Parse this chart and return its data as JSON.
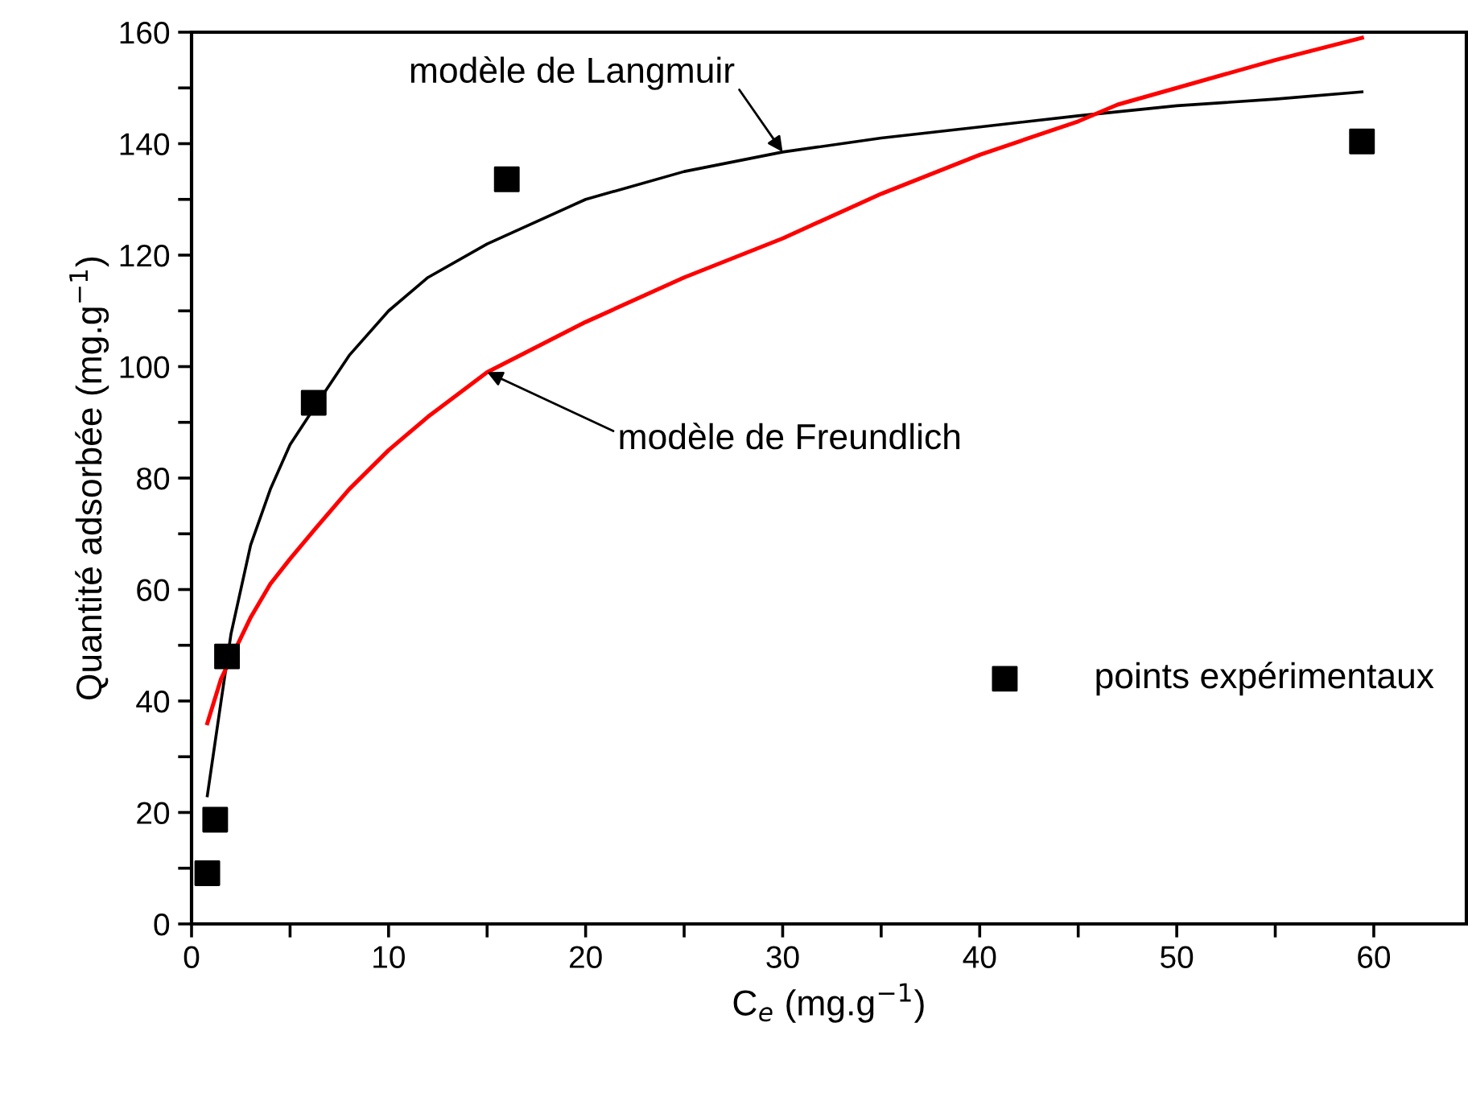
{
  "chart_data": {
    "type": "scatter",
    "xlabel": "C$_{e}$ (mg.g$^{−1}$)",
    "ylabel": "Quantité adsorbée (mg.g$^{−1}$)",
    "xlim": [
      0,
      64.7
    ],
    "ylim": [
      0,
      160
    ],
    "xticks": [
      0,
      {
        "value": 5,
        "label": null
      },
      10,
      {
        "value": 15,
        "label": null
      },
      20,
      {
        "value": 25,
        "label": null
      },
      30,
      {
        "value": 35,
        "label": null
      },
      40,
      {
        "value": 45,
        "label": null
      },
      50,
      {
        "value": 55,
        "label": null
      },
      60
    ],
    "yticks": [
      0,
      {
        "value": 10,
        "label": null
      },
      20,
      {
        "value": 30,
        "label": null
      },
      40,
      {
        "value": 50,
        "label": null
      },
      60,
      {
        "value": 70,
        "label": null
      },
      80,
      {
        "value": 90,
        "label": null
      },
      100,
      {
        "value": 110,
        "label": null
      },
      120,
      {
        "value": 130,
        "label": null
      },
      140,
      {
        "value": 150,
        "label": null
      },
      160
    ],
    "grid": false,
    "legend": "lower right",
    "series": [
      {
        "name": "points expérimentaux",
        "marker": "square",
        "color": "#000000",
        "x": [
          0.8,
          1.2,
          1.8,
          6.2,
          16.0,
          59.4
        ],
        "values": [
          9.1,
          18.7,
          48.0,
          93.5,
          133.6,
          140.4
        ]
      },
      {
        "type": "line",
        "marker": "none",
        "line_style": "solid",
        "color": "#000000",
        "x": [
          0.8,
          1.5,
          2,
          3,
          4,
          5,
          6.3,
          8,
          10,
          12,
          15,
          20,
          25,
          30,
          35,
          40,
          45,
          50,
          55,
          59.4
        ],
        "values": [
          23,
          40,
          52,
          68,
          78,
          86,
          93,
          102,
          110,
          116,
          122,
          130,
          135,
          138.5,
          141,
          143,
          145,
          146.8,
          148,
          149.3
        ]
      },
      {
        "type": "line",
        "marker": "none",
        "line_style": "solid",
        "color": "#ff0000",
        "x": [
          0.8,
          1.5,
          3,
          4,
          5,
          6.3,
          8,
          10,
          12,
          15,
          20,
          25,
          30,
          35,
          40,
          45,
          47,
          50,
          55,
          59.4
        ],
        "values": [
          36,
          44,
          55,
          61,
          65.5,
          71,
          78,
          85,
          91,
          99,
          108,
          116,
          123,
          131,
          138,
          144,
          147,
          150,
          155,
          159
        ]
      }
    ],
    "annotations": [
      {
        "text": "modèle de Langmuir",
        "x": 30,
        "y": 138.5
      },
      {
        "text": "modèle de Freundlich",
        "x": 15,
        "y": 99
      }
    ]
  }
}
